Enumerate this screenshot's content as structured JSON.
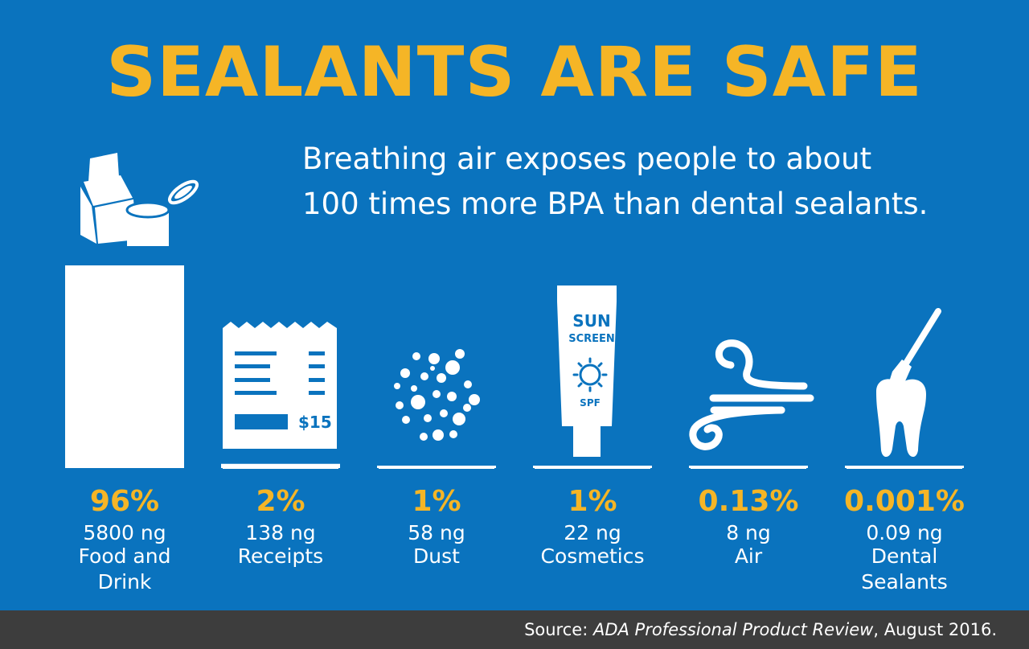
{
  "title": "SEALANTS ARE SAFE",
  "subtitle": {
    "line1": "Breathing air exposes people to about",
    "line2": "100 times more BPA than dental sealants."
  },
  "source": {
    "prefix": "Source: ",
    "publication": "ADA Professional Product Review",
    "suffix": ", August 2016."
  },
  "icons": {
    "food_drink": "milk-carton-and-can-icon",
    "receipts": "receipt-icon",
    "dust": "dust-particles-icon",
    "cosmetics": "sunscreen-tube-icon",
    "air": "wind-icon",
    "sealants": "tooth-and-brush-icon"
  },
  "sunscreen_text": {
    "line1": "SUN",
    "line2": "SCREEN",
    "line3": "SPF"
  },
  "receipt_text": {
    "price": "$15"
  },
  "colors": {
    "background": "#0a73be",
    "accent": "#f5b526",
    "bar": "#ffffff",
    "footer": "#3d3d3d"
  },
  "chart_data": {
    "type": "bar",
    "categories": [
      "Food and Drink",
      "Receipts",
      "Dust",
      "Cosmetics",
      "Air",
      "Dental Sealants"
    ],
    "values": [
      96,
      2,
      1,
      1,
      0.13,
      0.001
    ],
    "percent_labels": [
      "96%",
      "2%",
      "1%",
      "1%",
      "0.13%",
      "0.001%"
    ],
    "amount_labels": [
      "5800 ng",
      "138 ng",
      "58 ng",
      "22 ng",
      "8 ng",
      "0.09 ng"
    ],
    "category_lines": [
      [
        "Food and",
        "Drink"
      ],
      [
        "Receipts"
      ],
      [
        "Dust"
      ],
      [
        "Cosmetics"
      ],
      [
        "Air"
      ],
      [
        "Dental",
        "Sealants"
      ]
    ],
    "unit": "%",
    "ylim": [
      0,
      96
    ]
  }
}
